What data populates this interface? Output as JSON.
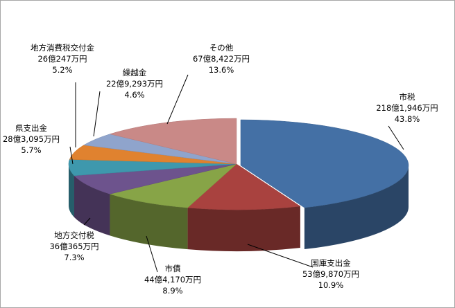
{
  "chart_data": {
    "type": "pie",
    "title": "",
    "legend": "none",
    "style": "3d-exploded",
    "slices": [
      {
        "name": "市税",
        "value_text": "218億1,946万円",
        "percent": 43.8,
        "percent_text": "43.8%",
        "color": "#4470a5"
      },
      {
        "name": "国庫支出金",
        "value_text": "53億9,870万円",
        "percent": 10.9,
        "percent_text": "10.9%",
        "color": "#a9423f"
      },
      {
        "name": "市債",
        "value_text": "44億4,170万円",
        "percent": 8.9,
        "percent_text": "8.9%",
        "color": "#87a447"
      },
      {
        "name": "地方交付税",
        "value_text": "36億365万円",
        "percent": 7.3,
        "percent_text": "7.3%",
        "color": "#6d538d"
      },
      {
        "name": "県支出金",
        "value_text": "28億3,095万円",
        "percent": 5.7,
        "percent_text": "5.7%",
        "color": "#3e98ad"
      },
      {
        "name": "地方消費税交付金",
        "value_text": "26億247万円",
        "percent": 5.2,
        "percent_text": "5.2%",
        "color": "#e0822f"
      },
      {
        "name": "繰越金",
        "value_text": "22億9,293万円",
        "percent": 4.6,
        "percent_text": "4.6%",
        "color": "#8fa4cc"
      },
      {
        "name": "その他",
        "value_text": "67億8,422万円",
        "percent": 13.6,
        "percent_text": "13.6%",
        "color": "#c98987"
      }
    ]
  }
}
